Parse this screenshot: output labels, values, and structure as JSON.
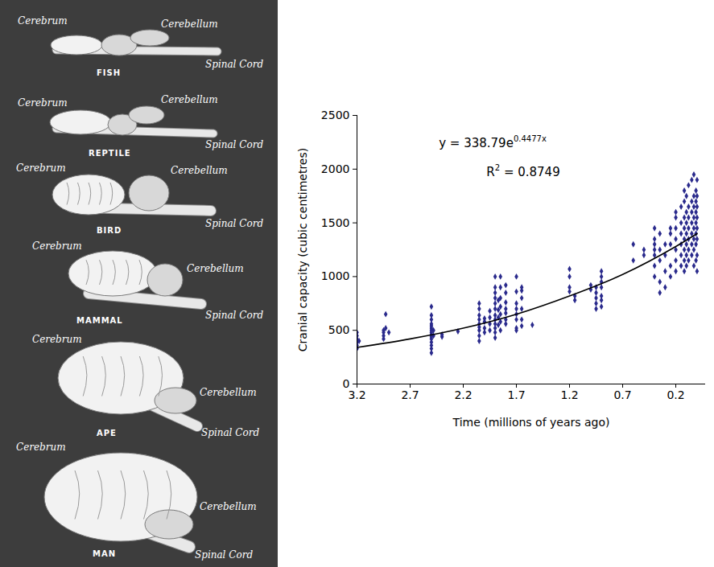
{
  "diagram": {
    "animals": [
      {
        "name": "FISH",
        "parts": [
          "Cerebrum",
          "Cerebellum",
          "Spinal Cord"
        ]
      },
      {
        "name": "REPTILE",
        "parts": [
          "Cerebrum",
          "Cerebellum",
          "Spinal Cord"
        ]
      },
      {
        "name": "BIRD",
        "parts": [
          "Cerebrum",
          "Cerebellum",
          "Spinal Cord"
        ]
      },
      {
        "name": "MAMMAL",
        "parts": [
          "Cerebrum",
          "Cerebellum",
          "Spinal Cord"
        ]
      },
      {
        "name": "APE",
        "parts": [
          "Cerebrum",
          "Cerebellum",
          "Spinal Cord"
        ]
      },
      {
        "name": "MAN",
        "parts": [
          "Cerebrum",
          "Cerebellum",
          "Spinal Cord"
        ]
      }
    ]
  },
  "chart_data": {
    "type": "scatter",
    "xlabel": "Time (millions of years ago)",
    "ylabel": "Cranial capacity (cubic centimetres)",
    "xlim": [
      3.2,
      -0.08
    ],
    "xticks": [
      3.2,
      2.7,
      2.2,
      1.7,
      1.2,
      0.7,
      0.2
    ],
    "ylim": [
      0,
      2500
    ],
    "yticks": [
      0,
      500,
      1000,
      1500,
      2000,
      2500
    ],
    "grid": false,
    "annotations": [
      {
        "parts": [
          {
            "text": "y = 338.79e"
          },
          {
            "text": "0.4477x",
            "superscript": true
          }
        ]
      },
      {
        "parts": [
          {
            "text": "R"
          },
          {
            "text": "2",
            "superscript": true
          },
          {
            "text": " = 0.8749"
          }
        ]
      }
    ],
    "series": [
      {
        "type": "scatter",
        "color": "#2a2a8c",
        "marker": "diamond",
        "x": [
          3.2,
          3.2,
          3.2,
          3.2,
          3.2,
          3.2,
          3.18,
          2.95,
          2.95,
          2.95,
          2.95,
          2.93,
          2.93,
          2.9,
          2.5,
          2.5,
          2.5,
          2.5,
          2.5,
          2.5,
          2.5,
          2.5,
          2.5,
          2.5,
          2.5,
          2.5,
          2.5,
          2.5,
          2.5,
          2.48,
          2.48,
          2.4,
          2.4,
          2.25,
          2.05,
          2.05,
          2.05,
          2.05,
          2.05,
          2.05,
          2.05,
          2.05,
          2.05,
          2.0,
          2.0,
          2.0,
          2.0,
          1.95,
          1.95,
          1.95,
          1.95,
          1.9,
          1.9,
          1.9,
          1.9,
          1.9,
          1.9,
          1.9,
          1.9,
          1.9,
          1.9,
          1.9,
          1.9,
          1.87,
          1.87,
          1.87,
          1.87,
          1.85,
          1.85,
          1.85,
          1.85,
          1.85,
          1.85,
          1.85,
          1.8,
          1.8,
          1.8,
          1.8,
          1.8,
          1.8,
          1.8,
          1.7,
          1.7,
          1.7,
          1.7,
          1.7,
          1.7,
          1.7,
          1.7,
          1.65,
          1.65,
          1.65,
          1.65,
          1.65,
          1.65,
          1.55,
          1.2,
          1.2,
          1.2,
          1.2,
          1.15,
          1.15,
          1.0,
          1.0,
          0.95,
          0.95,
          0.95,
          0.95,
          0.95,
          0.9,
          0.9,
          0.9,
          0.9,
          0.9,
          0.9,
          0.9,
          0.6,
          0.6,
          0.5,
          0.5,
          0.4,
          0.4,
          0.4,
          0.4,
          0.4,
          0.4,
          0.4,
          0.35,
          0.35,
          0.35,
          0.35,
          0.35,
          0.3,
          0.3,
          0.3,
          0.3,
          0.25,
          0.25,
          0.25,
          0.25,
          0.25,
          0.2,
          0.2,
          0.2,
          0.2,
          0.2,
          0.2,
          0.2,
          0.15,
          0.15,
          0.15,
          0.15,
          0.15,
          0.15,
          0.12,
          0.12,
          0.12,
          0.12,
          0.12,
          0.12,
          0.12,
          0.12,
          0.1,
          0.1,
          0.1,
          0.1,
          0.1,
          0.1,
          0.1,
          0.08,
          0.08,
          0.08,
          0.08,
          0.08,
          0.08,
          0.08,
          0.05,
          0.05,
          0.05,
          0.05,
          0.05,
          0.05,
          0.05,
          0.03,
          0.03,
          0.03,
          0.03,
          0.03,
          0.03,
          0.03,
          0.03,
          0.01,
          0.01,
          0.01,
          0.01,
          0.01,
          0.01,
          0.01,
          0,
          0,
          0,
          0,
          0,
          0,
          0,
          0
        ],
        "values": [
          330,
          360,
          390,
          420,
          450,
          480,
          400,
          420,
          450,
          480,
          500,
          520,
          650,
          480,
          290,
          330,
          360,
          390,
          420,
          440,
          460,
          480,
          500,
          520,
          540,
          560,
          600,
          640,
          720,
          450,
          500,
          440,
          460,
          490,
          400,
          450,
          500,
          530,
          560,
          600,
          640,
          700,
          750,
          480,
          520,
          580,
          610,
          500,
          560,
          620,
          680,
          430,
          480,
          520,
          560,
          600,
          640,
          700,
          750,
          800,
          850,
          900,
          1000,
          550,
          620,
          690,
          780,
          500,
          580,
          650,
          720,
          800,
          900,
          1000,
          560,
          600,
          660,
          700,
          760,
          850,
          920,
          500,
          520,
          600,
          650,
          700,
          750,
          860,
          1000,
          540,
          600,
          700,
          800,
          870,
          900,
          550,
          860,
          900,
          1000,
          1070,
          780,
          820,
          880,
          920,
          700,
          750,
          800,
          850,
          900,
          720,
          780,
          820,
          900,
          950,
          1000,
          1050,
          1150,
          1300,
          1200,
          1250,
          1000,
          1100,
          1200,
          1250,
          1300,
          1350,
          1450,
          850,
          950,
          1150,
          1250,
          1400,
          900,
          1050,
          1200,
          1300,
          1000,
          1100,
          1300,
          1400,
          1450,
          1050,
          1150,
          1250,
          1350,
          1450,
          1550,
          1600,
          1100,
          1200,
          1300,
          1400,
          1500,
          1650,
          1050,
          1150,
          1250,
          1350,
          1450,
          1550,
          1700,
          1800,
          1100,
          1200,
          1300,
          1400,
          1500,
          1600,
          1750,
          1150,
          1250,
          1350,
          1450,
          1550,
          1650,
          1850,
          1200,
          1300,
          1400,
          1500,
          1600,
          1700,
          1900,
          1100,
          1250,
          1350,
          1450,
          1550,
          1650,
          1750,
          1950,
          1150,
          1300,
          1400,
          1500,
          1600,
          1700,
          1800,
          1050,
          1200,
          1350,
          1450,
          1550,
          1650,
          1750,
          1900
        ]
      },
      {
        "type": "line",
        "color": "#000000",
        "line_style": "solid",
        "x": [
          3.2,
          2.7,
          2.2,
          1.7,
          1.2,
          0.7,
          0.2,
          0
        ],
        "values": [
          340,
          420,
          520,
          650,
          820,
          1020,
          1280,
          1400
        ]
      }
    ]
  }
}
